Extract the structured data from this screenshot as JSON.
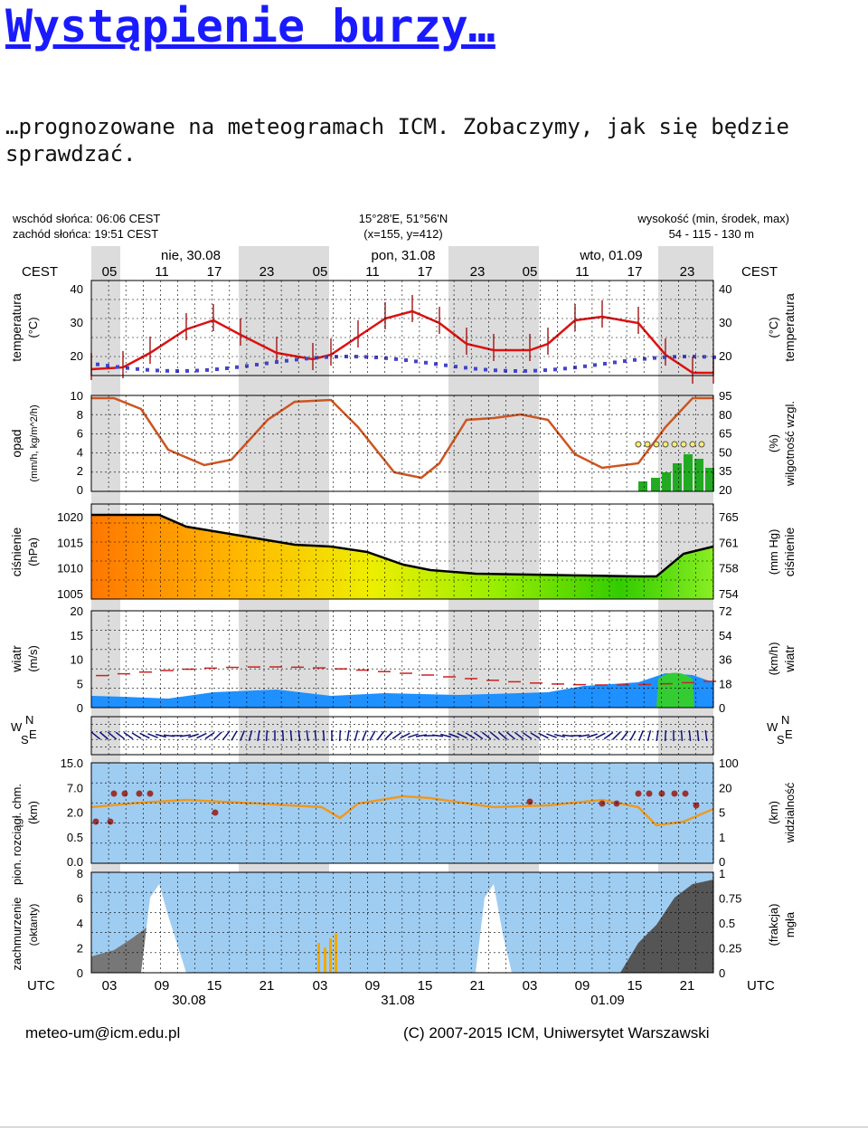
{
  "post": {
    "title": "Wystąpienie burzy…",
    "body": "…prognozowane na meteogramach ICM. Zobaczymy, jak się będzie sprawdzać."
  },
  "meteogram": {
    "sunrise": "wschód słońca: 06:06 CEST",
    "sunset": "zachód słońca: 19:51 CEST",
    "coords": "15°28'E, 51°56'N",
    "grid": "(x=155, y=412)",
    "height_label": "wysokość (min, środek, max)",
    "height_values": "54 - 115 - 130 m",
    "tz_top": "CEST",
    "tz_bottom": "UTC",
    "day_labels": [
      "nie, 30.08",
      "pon, 31.08",
      "wto, 01.09"
    ],
    "hours_cest": [
      "05",
      "11",
      "17",
      "23",
      "05",
      "11",
      "17",
      "23",
      "05",
      "11",
      "17",
      "23"
    ],
    "hours_utc": [
      "03",
      "09",
      "15",
      "21",
      "03",
      "09",
      "15",
      "21",
      "03",
      "09",
      "15",
      "21"
    ],
    "dates_bottom": [
      "30.08",
      "31.08",
      "01.09"
    ],
    "left_titles": {
      "temp": "temperatura",
      "temp_unit": "(°C)",
      "precip": "opad",
      "precip_unit": "(mm/h, kg/m^2/h)",
      "press": "ciśnienie",
      "press_unit": "(hPa)",
      "wind": "wiatr",
      "wind_unit": "(m/s)",
      "cloudbase": "rozciągł. chm.",
      "cloudbase_prefix": "pion.",
      "cloudbase_unit": "(km)",
      "cloud": "zachmurzenie",
      "cloud_unit": "(oktanty)"
    },
    "right_titles": {
      "temp": "temperatura",
      "temp_unit": "(°C)",
      "humidity": "wilgotność wzgl.",
      "humidity_unit": "(%)",
      "press": "ciśnienie",
      "press_unit": "(mm Hg)",
      "wind": "wiatr",
      "wind_unit": "(km/h)",
      "visibility": "widzialność",
      "visibility_unit": "(km)",
      "fog": "mgła",
      "fog_unit": "(frakcja)"
    },
    "compass": {
      "n": "N",
      "s": "S",
      "w": "W",
      "e": "E"
    },
    "axes": {
      "temp_left": [
        "40",
        "30",
        "20"
      ],
      "temp_right": [
        "40",
        "30",
        "20"
      ],
      "precip_left": [
        "10",
        "8",
        "6",
        "4",
        "2",
        "0"
      ],
      "humidity_right": [
        "95",
        "80",
        "65",
        "50",
        "35",
        "20"
      ],
      "press_left": [
        "1020",
        "1015",
        "1010",
        "1005"
      ],
      "press_right": [
        "765",
        "761",
        "758",
        "754"
      ],
      "wind_left": [
        "20",
        "15",
        "10",
        "5",
        "0"
      ],
      "wind_right": [
        "72",
        "54",
        "36",
        "18",
        "0"
      ],
      "cloudbase_left": [
        "15.0",
        "7.0",
        "2.0",
        "0.5",
        "0.0"
      ],
      "vis_right": [
        "100",
        "20",
        "5",
        "1",
        "0"
      ],
      "cloud_left": [
        "8",
        "6",
        "4",
        "2",
        "0"
      ],
      "fog_right": [
        "1",
        "0.75",
        "0.5",
        "0.25",
        "0"
      ]
    },
    "footer_email": "meteo-um@icm.edu.pl",
    "footer_copy": "(C) 2007-2015 ICM, Uniwersytet Warszawski",
    "colors": {
      "temp_line": "#dd1111",
      "dew_point": "#4444cc",
      "humidity_line": "#cc5522",
      "pressure_line": "#000000",
      "cloud_base": "#ee9922",
      "sky_blue": "#9fcdf2",
      "night_shade": "#dcdcdc",
      "wind_arrow": "#11117a"
    }
  }
}
